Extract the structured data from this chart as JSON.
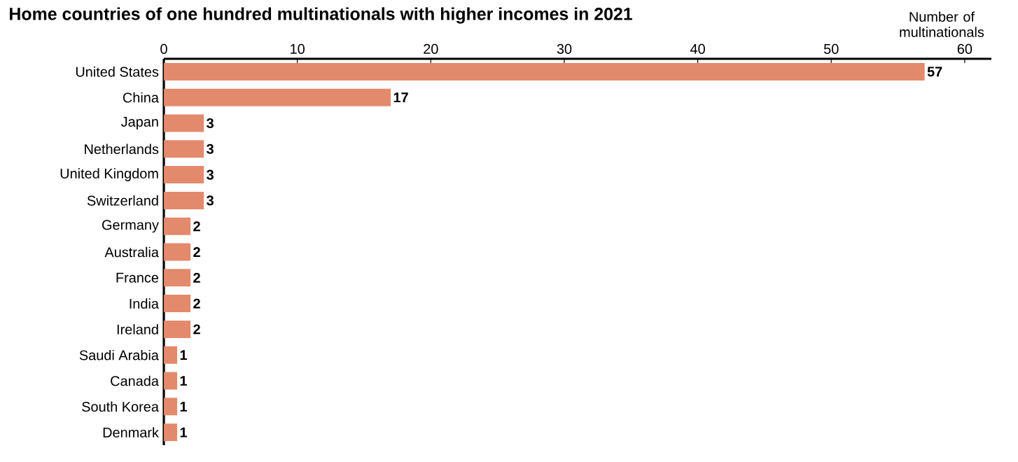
{
  "chart_data": {
    "type": "bar",
    "orientation": "horizontal",
    "title": "Home countries of one hundred multinationals with higher incomes in 2021",
    "xlabel": "Number of multinationals",
    "categories": [
      "United States",
      "China",
      "Japan",
      "Netherlands",
      "United Kingdom",
      "Switzerland",
      "Germany",
      "Australia",
      "France",
      "India",
      "Ireland",
      "Saudi Arabia",
      "Canada",
      "South Korea",
      "Denmark"
    ],
    "values": [
      57,
      17,
      3,
      3,
      3,
      3,
      2,
      2,
      2,
      2,
      2,
      1,
      1,
      1,
      1
    ],
    "color": "#e38a6d",
    "xlim": [
      0,
      62
    ],
    "xticks": [
      0,
      10,
      20,
      30,
      40,
      50,
      60
    ],
    "data_labels": true,
    "grid": false
  }
}
